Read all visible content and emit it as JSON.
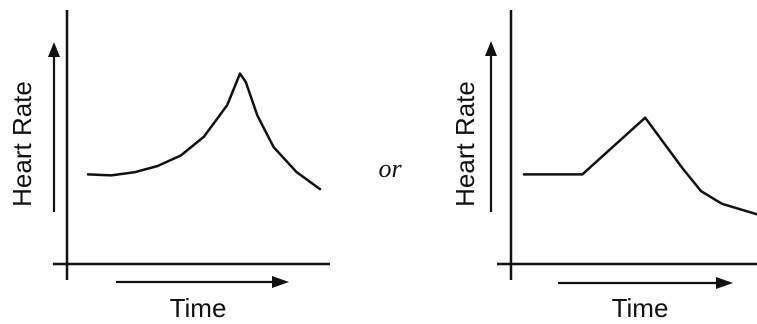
{
  "separator_text": "or",
  "chart_data": [
    {
      "type": "line",
      "title": "",
      "xlabel": "Time",
      "ylabel": "Heart Rate",
      "xlim": [
        0,
        10
      ],
      "ylim": [
        0,
        10
      ],
      "grid": false,
      "axis_ticks": false,
      "series": [
        {
          "values": [
            [
              0,
              3.6
            ],
            [
              1,
              3.55
            ],
            [
              2,
              3.7
            ],
            [
              3,
              4.0
            ],
            [
              4,
              4.5
            ],
            [
              5,
              5.4
            ],
            [
              6,
              6.9
            ],
            [
              6.55,
              8.4
            ],
            [
              6.8,
              8.0
            ],
            [
              7.3,
              6.4
            ],
            [
              8,
              4.9
            ],
            [
              9,
              3.7
            ],
            [
              10,
              2.9
            ]
          ]
        }
      ]
    },
    {
      "type": "line",
      "title": "",
      "xlabel": "Time",
      "ylabel": "Heart Rate",
      "xlim": [
        0,
        10
      ],
      "ylim": [
        0,
        10
      ],
      "grid": false,
      "axis_ticks": false,
      "series": [
        {
          "values": [
            [
              0,
              3.6
            ],
            [
              2.5,
              3.6
            ],
            [
              5.2,
              6.3
            ],
            [
              6.8,
              3.9
            ],
            [
              7.6,
              2.8
            ],
            [
              8.5,
              2.2
            ],
            [
              10,
              1.7
            ]
          ]
        }
      ]
    }
  ]
}
